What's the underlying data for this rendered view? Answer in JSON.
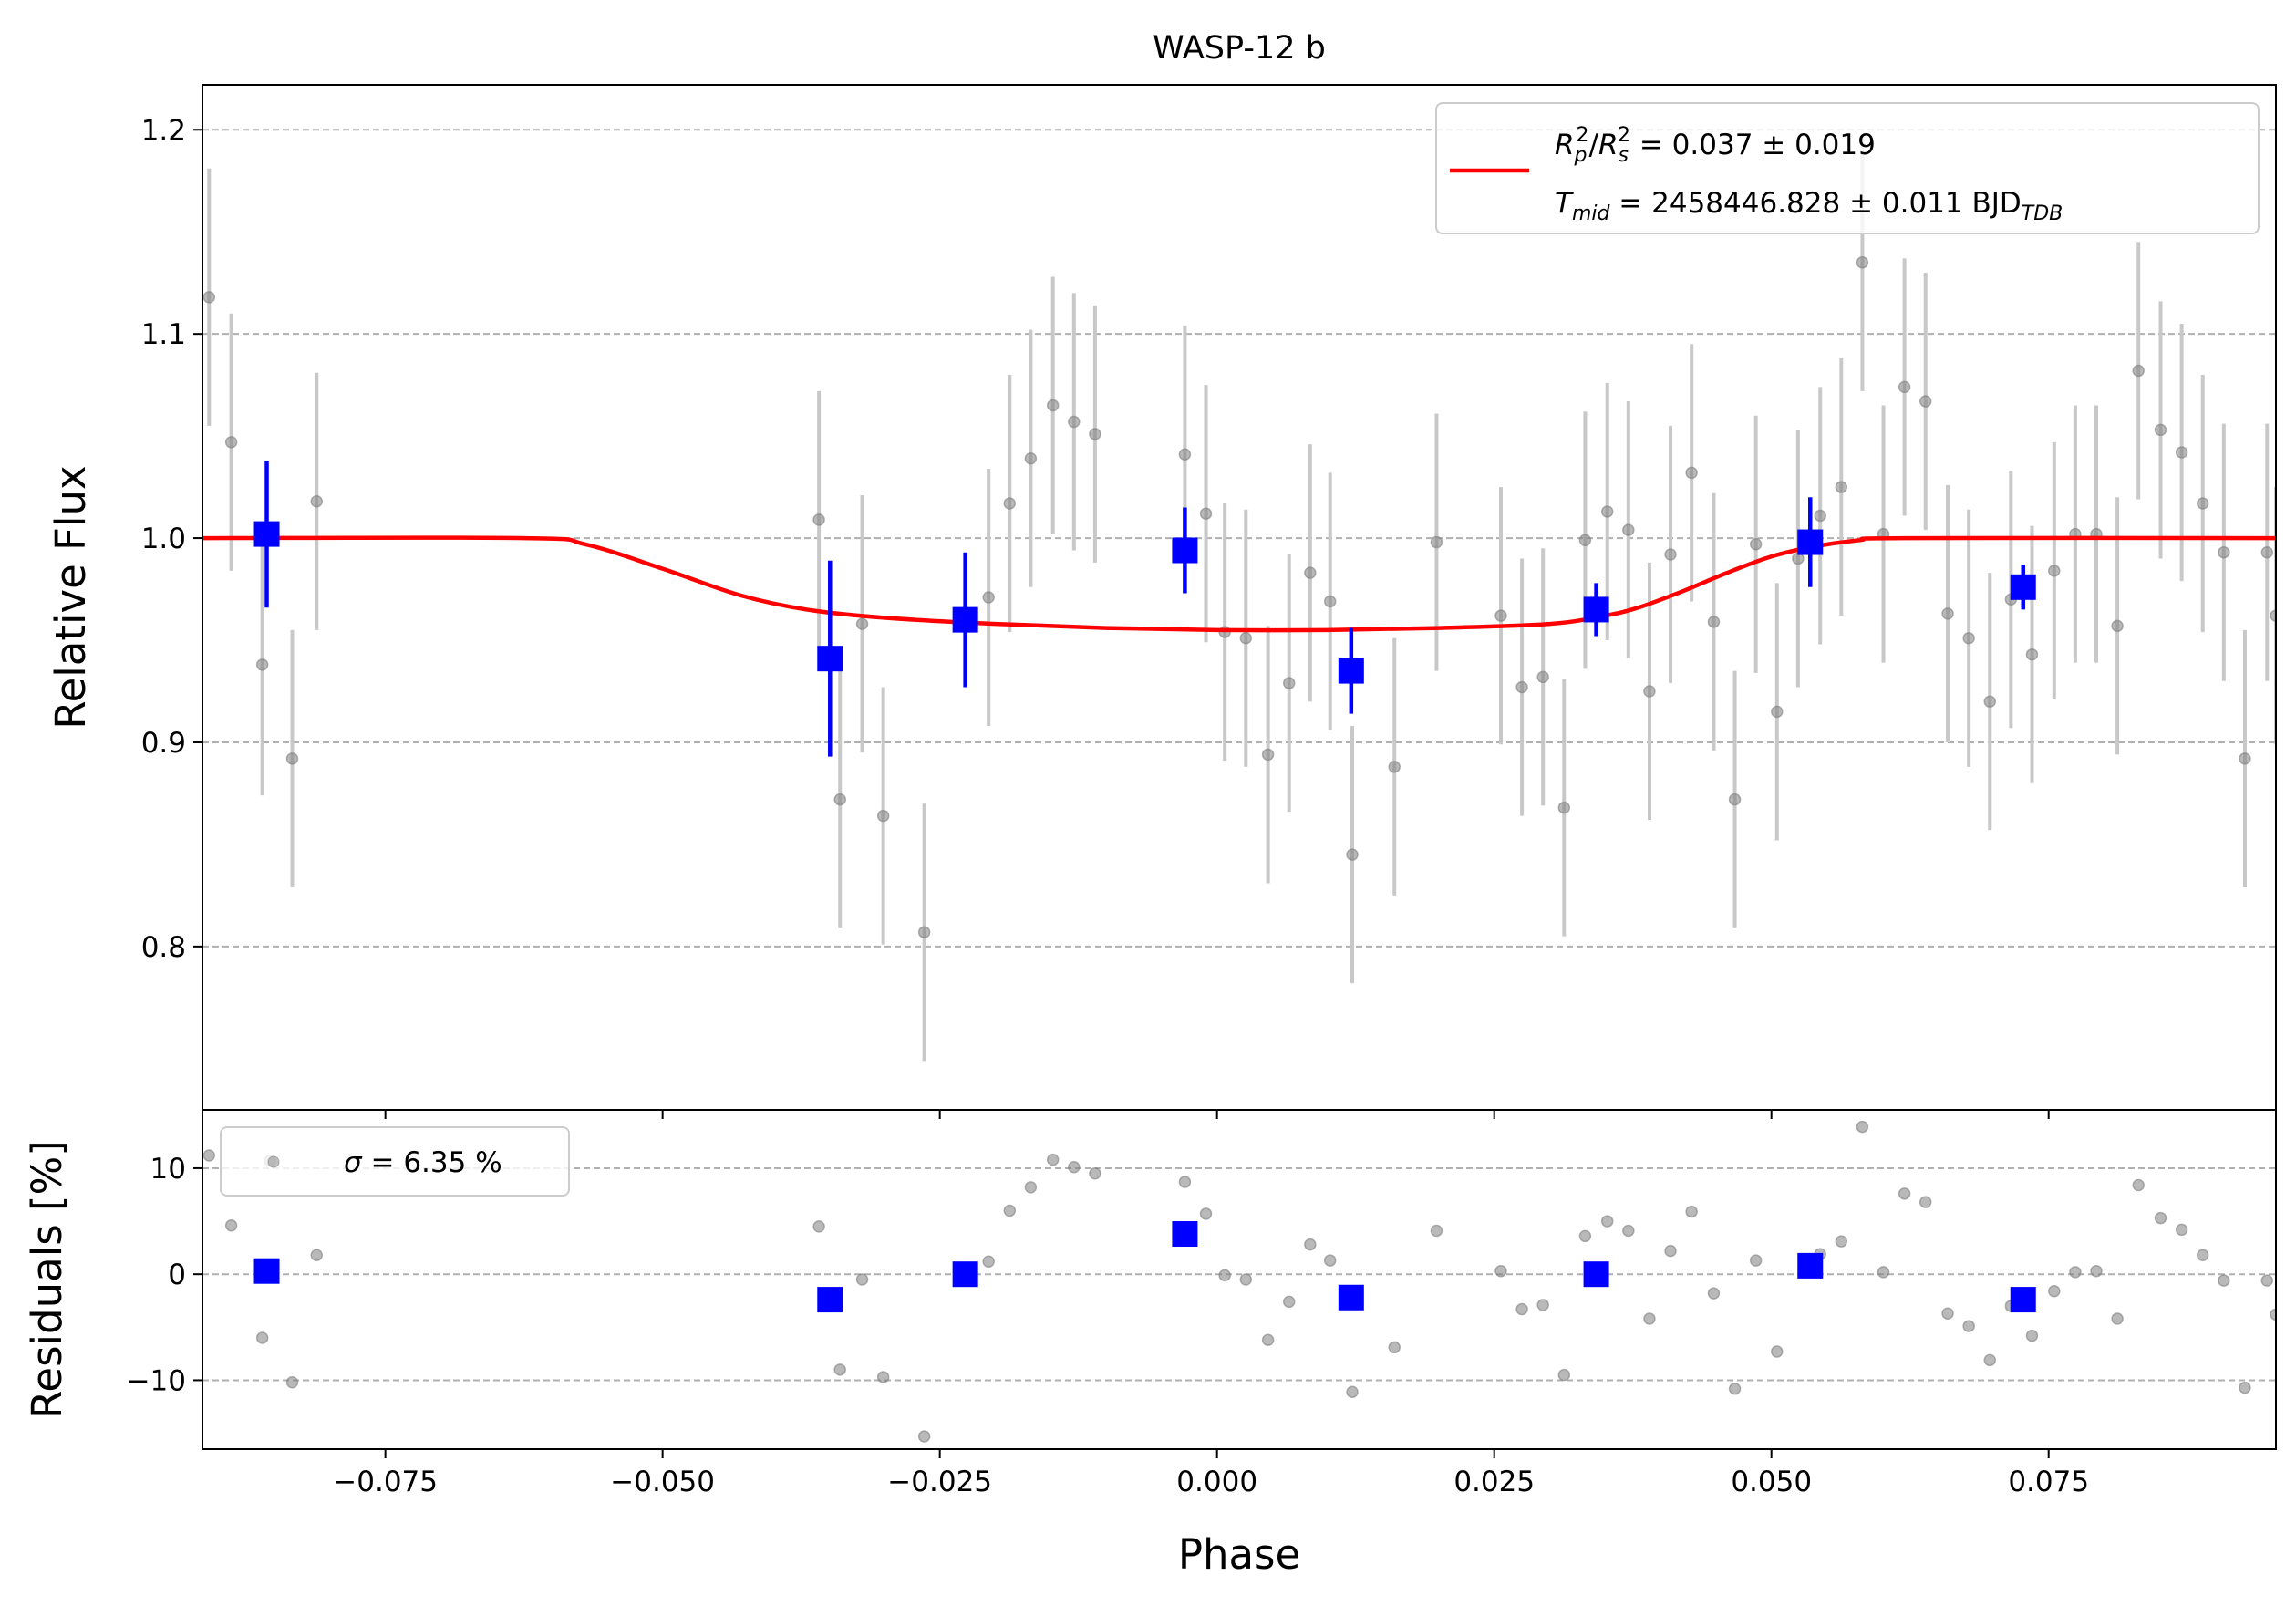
{
  "chart_data": {
    "type": "scatter",
    "title": "WASP-12 b",
    "xlabel": "Phase",
    "xlim": [
      -0.0915,
      0.0955
    ],
    "x_ticks": [
      "−0.075",
      "−0.050",
      "−0.025",
      "0.000",
      "0.025",
      "0.050",
      "0.075"
    ],
    "x_tick_values": [
      -0.075,
      -0.05,
      -0.025,
      0.0,
      0.025,
      0.05,
      0.075
    ],
    "grid": "horizontal dashed",
    "colors": {
      "raw": "#808080",
      "raw_err": "#c8c8c8",
      "binned": "#0000ff",
      "model": "#ff0000"
    },
    "flux_panel": {
      "ylabel": "Relative Flux",
      "ylim": [
        0.72,
        1.222
      ],
      "y_ticks": [
        "0.8",
        "0.9",
        "1.0",
        "1.1",
        "1.2"
      ],
      "y_tick_values": [
        0.8,
        0.9,
        1.0,
        1.1,
        1.2
      ],
      "legend": {
        "position": "top-right",
        "line1": {
          "sym": "R",
          "sub": "p",
          "sup": "2",
          "sym2": "R",
          "sub2": "s",
          "sup2": "2",
          "value": " = 0.037 ± 0.019"
        },
        "line2": {
          "sym": "T",
          "sub": "mid",
          "value": " = 2458446.828 ± 0.011 BJD",
          "unit_sub": "TDB"
        }
      },
      "raw_points": [
        {
          "x": -0.0909,
          "y": 1.118,
          "err": 0.063
        },
        {
          "x": -0.0889,
          "y": 1.047,
          "err": 0.063
        },
        {
          "x": -0.0861,
          "y": 0.938,
          "err": 0.064
        },
        {
          "x": -0.0834,
          "y": 0.892,
          "err": 0.063
        },
        {
          "x": -0.0812,
          "y": 1.018,
          "err": 0.063
        },
        {
          "x": -0.0359,
          "y": 1.009,
          "err": 0.063
        },
        {
          "x": -0.034,
          "y": 0.872,
          "err": 0.063
        },
        {
          "x": -0.032,
          "y": 0.958,
          "err": 0.063
        },
        {
          "x": -0.0301,
          "y": 0.864,
          "err": 0.063
        },
        {
          "x": -0.0264,
          "y": 0.807,
          "err": 0.063
        },
        {
          "x": -0.0206,
          "y": 0.971,
          "err": 0.063
        },
        {
          "x": -0.0187,
          "y": 1.017,
          "err": 0.063
        },
        {
          "x": -0.0168,
          "y": 1.039,
          "err": 0.063
        },
        {
          "x": -0.0148,
          "y": 1.065,
          "err": 0.063
        },
        {
          "x": -0.0129,
          "y": 1.057,
          "err": 0.063
        },
        {
          "x": -0.011,
          "y": 1.051,
          "err": 0.063
        },
        {
          "x": -0.0029,
          "y": 1.041,
          "err": 0.063
        },
        {
          "x": -0.001,
          "y": 1.012,
          "err": 0.063
        },
        {
          "x": 0.0007,
          "y": 0.954,
          "err": 0.063
        },
        {
          "x": 0.0026,
          "y": 0.951,
          "err": 0.063
        },
        {
          "x": 0.0046,
          "y": 0.894,
          "err": 0.063
        },
        {
          "x": 0.0065,
          "y": 0.929,
          "err": 0.063
        },
        {
          "x": 0.0084,
          "y": 0.983,
          "err": 0.063
        },
        {
          "x": 0.0102,
          "y": 0.969,
          "err": 0.063
        },
        {
          "x": 0.0122,
          "y": 0.845,
          "err": 0.063
        },
        {
          "x": 0.016,
          "y": 0.888,
          "err": 0.063
        },
        {
          "x": 0.0198,
          "y": 0.998,
          "err": 0.063
        },
        {
          "x": 0.0256,
          "y": 0.962,
          "err": 0.063
        },
        {
          "x": 0.0275,
          "y": 0.927,
          "err": 0.063
        },
        {
          "x": 0.0294,
          "y": 0.932,
          "err": 0.063
        },
        {
          "x": 0.0313,
          "y": 0.868,
          "err": 0.063
        },
        {
          "x": 0.0332,
          "y": 0.999,
          "err": 0.063
        },
        {
          "x": 0.0352,
          "y": 1.013,
          "err": 0.063
        },
        {
          "x": 0.0371,
          "y": 1.004,
          "err": 0.063
        },
        {
          "x": 0.039,
          "y": 0.925,
          "err": 0.063
        },
        {
          "x": 0.0409,
          "y": 0.992,
          "err": 0.063
        },
        {
          "x": 0.0428,
          "y": 1.032,
          "err": 0.063
        },
        {
          "x": 0.0448,
          "y": 0.959,
          "err": 0.063
        },
        {
          "x": 0.0467,
          "y": 0.872,
          "err": 0.063
        },
        {
          "x": 0.0486,
          "y": 0.997,
          "err": 0.063
        },
        {
          "x": 0.0505,
          "y": 0.915,
          "err": 0.063
        },
        {
          "x": 0.0524,
          "y": 0.99,
          "err": 0.063
        },
        {
          "x": 0.0544,
          "y": 1.011,
          "err": 0.063
        },
        {
          "x": 0.0563,
          "y": 1.025,
          "err": 0.063
        },
        {
          "x": 0.0582,
          "y": 1.135,
          "err": 0.063
        },
        {
          "x": 0.0601,
          "y": 1.002,
          "err": 0.063
        },
        {
          "x": 0.062,
          "y": 1.074,
          "err": 0.063
        },
        {
          "x": 0.0639,
          "y": 1.067,
          "err": 0.063
        },
        {
          "x": 0.0659,
          "y": 0.963,
          "err": 0.063
        },
        {
          "x": 0.0678,
          "y": 0.951,
          "err": 0.063
        },
        {
          "x": 0.0697,
          "y": 0.92,
          "err": 0.063
        },
        {
          "x": 0.0716,
          "y": 0.97,
          "err": 0.063
        },
        {
          "x": 0.0735,
          "y": 0.943,
          "err": 0.063
        },
        {
          "x": 0.0755,
          "y": 0.984,
          "err": 0.063
        },
        {
          "x": 0.0774,
          "y": 1.002,
          "err": 0.063
        },
        {
          "x": 0.0793,
          "y": 1.002,
          "err": 0.063
        },
        {
          "x": 0.0812,
          "y": 0.957,
          "err": 0.063
        },
        {
          "x": 0.0831,
          "y": 1.082,
          "err": 0.063
        },
        {
          "x": 0.0851,
          "y": 1.053,
          "err": 0.063
        },
        {
          "x": 0.087,
          "y": 1.042,
          "err": 0.063
        },
        {
          "x": 0.0889,
          "y": 1.017,
          "err": 0.063
        },
        {
          "x": 0.0908,
          "y": 0.993,
          "err": 0.063
        },
        {
          "x": 0.0927,
          "y": 0.892,
          "err": 0.063
        },
        {
          "x": 0.0947,
          "y": 0.993,
          "err": 0.063
        },
        {
          "x": 0.0955,
          "y": 0.962,
          "err": 0.063
        }
      ],
      "binned_points": [
        {
          "x": -0.0857,
          "y": 1.002,
          "err": 0.036
        },
        {
          "x": -0.0349,
          "y": 0.941,
          "err": 0.048
        },
        {
          "x": -0.0227,
          "y": 0.96,
          "err": 0.033
        },
        {
          "x": -0.0029,
          "y": 0.994,
          "err": 0.021
        },
        {
          "x": 0.0121,
          "y": 0.935,
          "err": 0.021
        },
        {
          "x": 0.0342,
          "y": 0.965,
          "err": 0.013
        },
        {
          "x": 0.0535,
          "y": 0.998,
          "err": 0.022
        },
        {
          "x": 0.0727,
          "y": 0.976,
          "err": 0.011
        }
      ],
      "model": {
        "x": [
          -0.0915,
          -0.0625,
          -0.057,
          -0.05,
          -0.043,
          -0.037,
          -0.03,
          -0.02,
          -0.01,
          0.0,
          0.01,
          0.02,
          0.03,
          0.035,
          0.038,
          0.042,
          0.046,
          0.05,
          0.054,
          0.058,
          0.062,
          0.0955
        ],
        "y": [
          1.0,
          1.0,
          0.997,
          0.985,
          0.972,
          0.965,
          0.961,
          0.958,
          0.956,
          0.955,
          0.955,
          0.956,
          0.958,
          0.962,
          0.966,
          0.974,
          0.983,
          0.991,
          0.996,
          0.999,
          1.0,
          1.0
        ]
      }
    },
    "residual_panel": {
      "ylabel": "Residuals [%]",
      "ylim": [
        -16.5,
        15.5
      ],
      "y_ticks": [
        "−10",
        "0",
        "10"
      ],
      "y_tick_values": [
        -10,
        0,
        10
      ],
      "legend": {
        "position": "top-left",
        "sym": "σ",
        "value": " = 6.35 %"
      },
      "raw_points": [
        {
          "x": -0.0909,
          "y": 11.2
        },
        {
          "x": -0.0889,
          "y": 4.6
        },
        {
          "x": -0.0861,
          "y": -6.0
        },
        {
          "x": -0.0854,
          "y": 10.7
        },
        {
          "x": -0.0834,
          "y": -10.2
        },
        {
          "x": -0.0812,
          "y": 1.8
        },
        {
          "x": -0.0359,
          "y": 4.5
        },
        {
          "x": -0.034,
          "y": -9.0
        },
        {
          "x": -0.032,
          "y": -0.5
        },
        {
          "x": -0.0301,
          "y": -9.7
        },
        {
          "x": -0.0264,
          "y": -15.3
        },
        {
          "x": -0.0206,
          "y": 1.2
        },
        {
          "x": -0.0187,
          "y": 6.0
        },
        {
          "x": -0.0168,
          "y": 8.2
        },
        {
          "x": -0.0148,
          "y": 10.8
        },
        {
          "x": -0.0129,
          "y": 10.1
        },
        {
          "x": -0.011,
          "y": 9.5
        },
        {
          "x": -0.0029,
          "y": 8.7
        },
        {
          "x": -0.001,
          "y": 5.7
        },
        {
          "x": 0.0007,
          "y": -0.1
        },
        {
          "x": 0.0026,
          "y": -0.5
        },
        {
          "x": 0.0046,
          "y": -6.2
        },
        {
          "x": 0.0065,
          "y": -2.6
        },
        {
          "x": 0.0084,
          "y": 2.8
        },
        {
          "x": 0.0102,
          "y": 1.3
        },
        {
          "x": 0.0122,
          "y": -11.1
        },
        {
          "x": 0.016,
          "y": -6.9
        },
        {
          "x": 0.0198,
          "y": 4.1
        },
        {
          "x": 0.0256,
          "y": 0.3
        },
        {
          "x": 0.0275,
          "y": -3.3
        },
        {
          "x": 0.0294,
          "y": -2.9
        },
        {
          "x": 0.0313,
          "y": -9.5
        },
        {
          "x": 0.0332,
          "y": 3.6
        },
        {
          "x": 0.0352,
          "y": 5.0
        },
        {
          "x": 0.0371,
          "y": 4.1
        },
        {
          "x": 0.039,
          "y": -4.2
        },
        {
          "x": 0.0409,
          "y": 2.2
        },
        {
          "x": 0.0428,
          "y": 5.9
        },
        {
          "x": 0.0448,
          "y": -1.8
        },
        {
          "x": 0.0467,
          "y": -10.8
        },
        {
          "x": 0.0486,
          "y": 1.3
        },
        {
          "x": 0.0505,
          "y": -7.3
        },
        {
          "x": 0.0544,
          "y": 1.9
        },
        {
          "x": 0.0563,
          "y": 3.1
        },
        {
          "x": 0.0582,
          "y": 13.9
        },
        {
          "x": 0.0601,
          "y": 0.2
        },
        {
          "x": 0.062,
          "y": 7.6
        },
        {
          "x": 0.0639,
          "y": 6.8
        },
        {
          "x": 0.0659,
          "y": -3.7
        },
        {
          "x": 0.0678,
          "y": -4.9
        },
        {
          "x": 0.0697,
          "y": -8.1
        },
        {
          "x": 0.0716,
          "y": -3.0
        },
        {
          "x": 0.0735,
          "y": -5.8
        },
        {
          "x": 0.0755,
          "y": -1.6
        },
        {
          "x": 0.0774,
          "y": 0.2
        },
        {
          "x": 0.0793,
          "y": 0.3
        },
        {
          "x": 0.0812,
          "y": -4.2
        },
        {
          "x": 0.0831,
          "y": 8.4
        },
        {
          "x": 0.0851,
          "y": 5.3
        },
        {
          "x": 0.087,
          "y": 4.2
        },
        {
          "x": 0.0889,
          "y": 1.8
        },
        {
          "x": 0.0908,
          "y": -0.6
        },
        {
          "x": 0.0927,
          "y": -10.7
        },
        {
          "x": 0.0947,
          "y": -0.6
        },
        {
          "x": 0.0955,
          "y": -3.8
        }
      ],
      "binned_points": [
        {
          "x": -0.0857,
          "y": 0.3
        },
        {
          "x": -0.0349,
          "y": -2.4
        },
        {
          "x": -0.0227,
          "y": 0.0
        },
        {
          "x": -0.0029,
          "y": 3.8
        },
        {
          "x": 0.0121,
          "y": -2.2
        },
        {
          "x": 0.0342,
          "y": 0.0
        },
        {
          "x": 0.0535,
          "y": 0.8
        },
        {
          "x": 0.0727,
          "y": -2.4
        }
      ]
    }
  }
}
